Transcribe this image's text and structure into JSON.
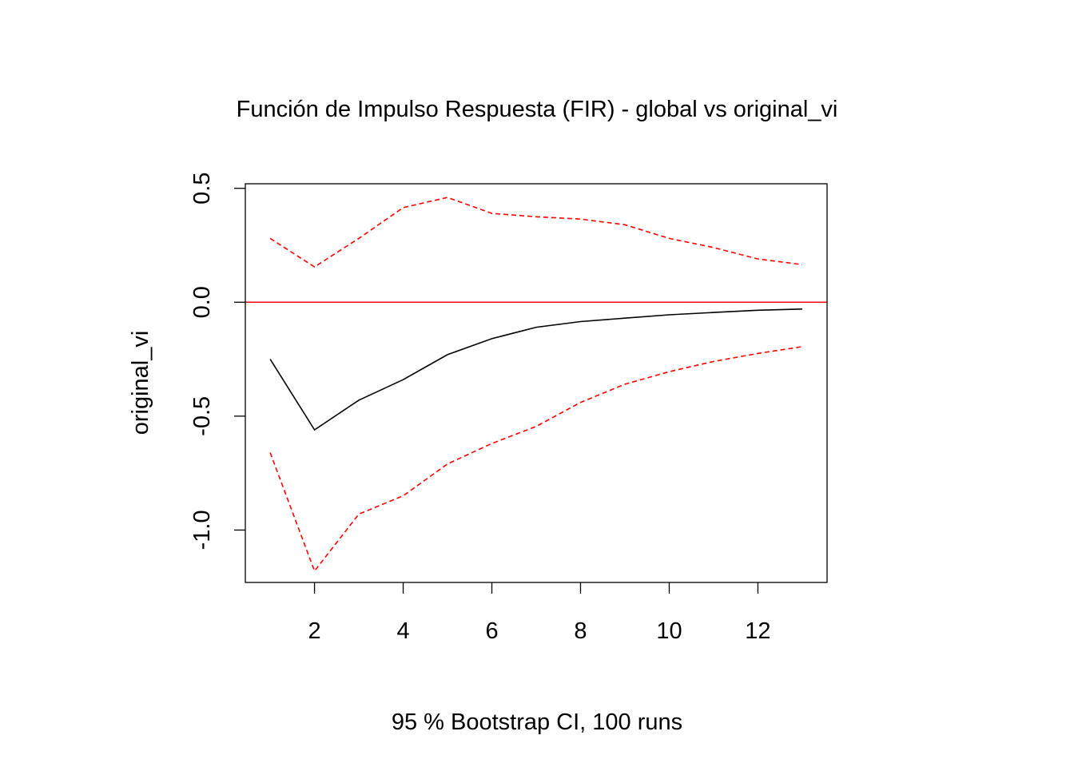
{
  "chart_data": {
    "type": "line",
    "title": "Función de Impulso Respuesta (FIR) - global vs original_vi",
    "xlabel": "95 % Bootstrap CI,  100 runs",
    "ylabel": "original_vi",
    "x": [
      1,
      2,
      3,
      4,
      5,
      6,
      7,
      8,
      9,
      10,
      11,
      12,
      13
    ],
    "xlim": [
      0.44,
      13.56
    ],
    "ylim": [
      -1.23,
      0.52
    ],
    "x_ticks": [
      2,
      4,
      6,
      8,
      10,
      12
    ],
    "x_tick_labels": [
      "2",
      "4",
      "6",
      "8",
      "10",
      "12"
    ],
    "y_ticks": [
      -1.0,
      -0.5,
      0.0,
      0.5
    ],
    "y_tick_labels": [
      "-1.0",
      "-0.5",
      "0.0",
      "0.5"
    ],
    "reference_line": {
      "y": 0,
      "color": "#ff0000"
    },
    "series": [
      {
        "role": "response",
        "color": "#000000",
        "dash": "solid",
        "values": [
          -0.25,
          -0.56,
          -0.43,
          -0.34,
          -0.23,
          -0.16,
          -0.11,
          -0.085,
          -0.07,
          -0.055,
          -0.045,
          -0.035,
          -0.03
        ]
      },
      {
        "role": "upper-ci",
        "color": "#ff0000",
        "dash": "dashed",
        "values": [
          0.28,
          0.155,
          0.28,
          0.415,
          0.46,
          0.39,
          0.375,
          0.365,
          0.34,
          0.28,
          0.24,
          0.19,
          0.165
        ]
      },
      {
        "role": "lower-ci",
        "color": "#ff0000",
        "dash": "dashed",
        "values": [
          -0.66,
          -1.18,
          -0.93,
          -0.85,
          -0.71,
          -0.62,
          -0.545,
          -0.44,
          -0.36,
          -0.305,
          -0.26,
          -0.225,
          -0.195
        ]
      }
    ]
  }
}
